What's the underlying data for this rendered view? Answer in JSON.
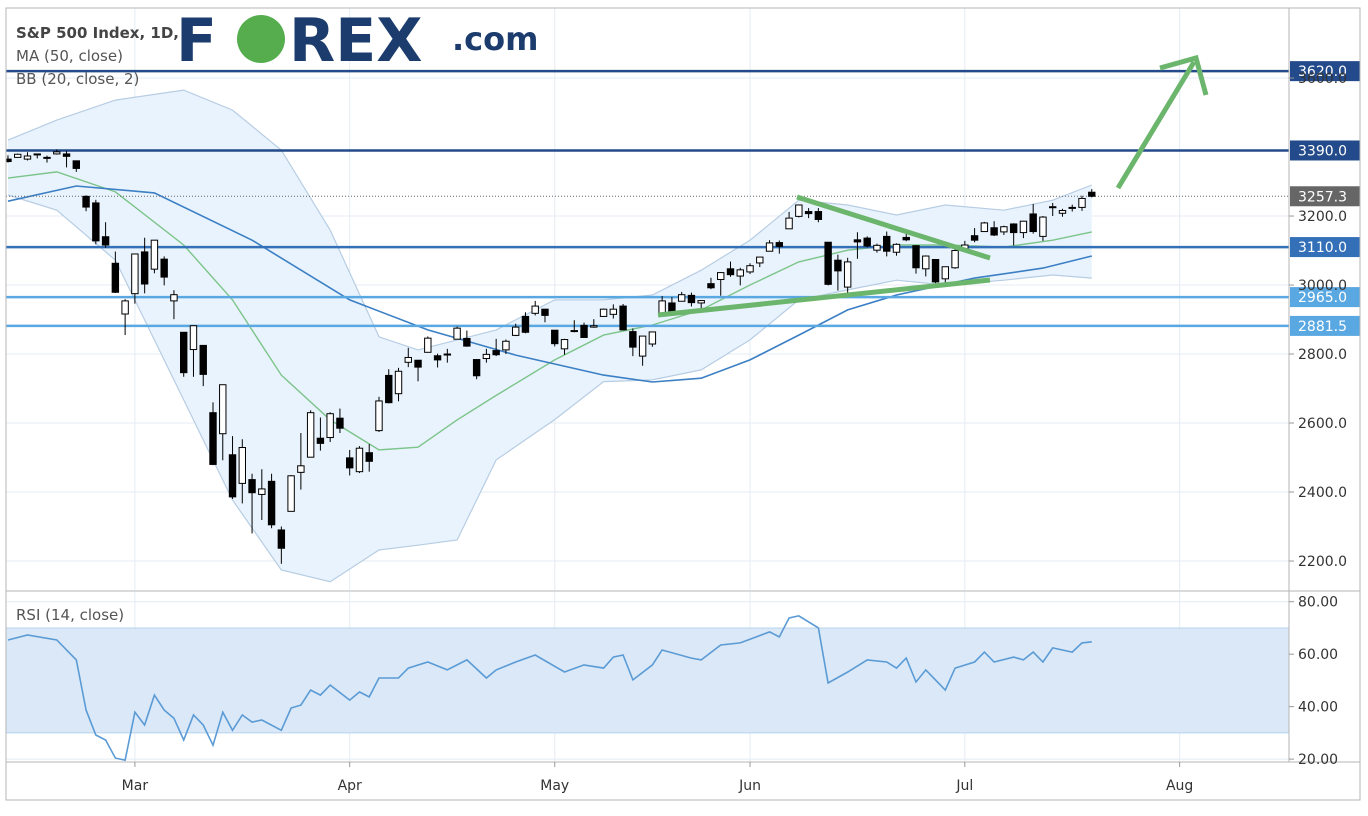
{
  "chart_data": {
    "type": "candlestick",
    "title": "S&P 500 Index, 1D,",
    "logo": {
      "first": "F",
      "second": "O",
      "rest": "REX",
      "suffix": ".com"
    },
    "xlim": [
      -0.2,
      131.2
    ],
    "xticks": [
      {
        "value": 13,
        "label": "Mar"
      },
      {
        "value": 35,
        "label": "Apr"
      },
      {
        "value": 56,
        "label": "May"
      },
      {
        "value": 76,
        "label": "Jun"
      },
      {
        "value": 98,
        "label": "Jul"
      },
      {
        "value": 120,
        "label": "Aug"
      }
    ],
    "ylim": [
      2116,
      3803
    ],
    "yticks": [
      {
        "value": 2200,
        "label": "2200.0"
      },
      {
        "value": 2400,
        "label": "2400.0"
      },
      {
        "value": 2600,
        "label": "2600.0"
      },
      {
        "value": 2800,
        "label": "2800.0"
      },
      {
        "value": 3000,
        "label": "3000.0"
      },
      {
        "value": 3200,
        "label": "3200.0"
      },
      {
        "value": 3600,
        "label": "3600.0"
      }
    ],
    "grid": true,
    "up_color": "#ffffff",
    "down_color": "#000000",
    "x": [
      0,
      1,
      2,
      3,
      4,
      5,
      6,
      7,
      8,
      9,
      10,
      11,
      12,
      13,
      14,
      15,
      16,
      17,
      18,
      19,
      20,
      21,
      22,
      23,
      24,
      25,
      26,
      27,
      28,
      29,
      30,
      31,
      32,
      33,
      34,
      35,
      36,
      37,
      38,
      39,
      40,
      41,
      42,
      43,
      44,
      45,
      46,
      47,
      48,
      49,
      50,
      51,
      52,
      53,
      54,
      55,
      56,
      57,
      58,
      59,
      60,
      61,
      62,
      63,
      64,
      65,
      66,
      67,
      68,
      69,
      70,
      71,
      72,
      73,
      74,
      75,
      76,
      77,
      78,
      79,
      80,
      81,
      82,
      83,
      84,
      85,
      86,
      87,
      88,
      89,
      90,
      91,
      92,
      93,
      94,
      95,
      96,
      97,
      98,
      99,
      100,
      101,
      102,
      103,
      104,
      105,
      106,
      107,
      108,
      109,
      110,
      111
    ],
    "open": [
      3365,
      3370,
      3365,
      3378,
      3369,
      3380,
      3380,
      3360,
      3257,
      3238,
      3140,
      3063,
      2916,
      2975,
      3096,
      3046,
      3075,
      2954,
      2863,
      2813,
      2825,
      2630,
      2569,
      2508,
      2425,
      2436,
      2393,
      2431,
      2290,
      2344,
      2457,
      2501,
      2556,
      2558,
      2614,
      2499,
      2459,
      2514,
      2578,
      2738,
      2685,
      2776,
      2782,
      2805,
      2795,
      2799,
      2843,
      2845,
      2784,
      2787,
      2810,
      2812,
      2854,
      2909,
      2918,
      2930,
      2869,
      2815,
      2868,
      2883,
      2878,
      2909,
      2915,
      2939,
      2865,
      2794,
      2829,
      2913,
      2948,
      2953,
      2970,
      2948,
      3004,
      3016,
      3047,
      3026,
      3038,
      3064,
      3098,
      3123,
      3163,
      3199,
      3213,
      3213,
      3124,
      3072,
      2994,
      3131,
      3136,
      3101,
      3141,
      3095,
      3138,
      3114,
      3047,
      3074,
      3018,
      3050,
      3105,
      3143,
      3155,
      3166,
      3154,
      3177,
      3152,
      3206,
      3141,
      3225,
      3208,
      3224,
      3225,
      3269
    ],
    "high": [
      3376,
      3381,
      3385,
      3380,
      3375,
      3393,
      3389,
      3360,
      3260,
      3247,
      3182,
      3097,
      2959,
      3091,
      3137,
      3130,
      3083,
      2985,
      2863,
      2883,
      2825,
      2660,
      2711,
      2562,
      2553,
      2453,
      2466,
      2453,
      2300,
      2449,
      2571,
      2637,
      2616,
      2631,
      2642,
      2522,
      2533,
      2539,
      2676,
      2756,
      2760,
      2818,
      2782,
      2851,
      2801,
      2815,
      2880,
      2868,
      2785,
      2815,
      2844,
      2842,
      2888,
      2921,
      2954,
      2930,
      2869,
      2844,
      2898,
      2891,
      2901,
      2932,
      2944,
      2945,
      2874,
      2852,
      2865,
      2968,
      2965,
      2980,
      2978,
      2956,
      3021,
      3037,
      3068,
      3050,
      3063,
      3081,
      3130,
      3129,
      3212,
      3233,
      3223,
      3223,
      3124,
      3088,
      3079,
      3153,
      3141,
      3120,
      3155,
      3121,
      3154,
      3115,
      3086,
      3074,
      3053,
      3111,
      3128,
      3165,
      3183,
      3185,
      3172,
      3179,
      3186,
      3235,
      3200,
      3238,
      3221,
      3233,
      3259,
      3278
    ],
    "low": [
      3355,
      3369,
      3361,
      3367,
      3355,
      3378,
      3341,
      3328,
      3214,
      3118,
      3108,
      2977,
      2855,
      2946,
      2976,
      3034,
      2999,
      2901,
      2734,
      2734,
      2707,
      2478,
      2492,
      2380,
      2367,
      2280,
      2319,
      2295,
      2192,
      2344,
      2407,
      2500,
      2520,
      2545,
      2571,
      2448,
      2455,
      2459,
      2574,
      2657,
      2663,
      2762,
      2721,
      2805,
      2761,
      2775,
      2843,
      2821,
      2727,
      2775,
      2794,
      2800,
      2852,
      2860,
      2912,
      2892,
      2822,
      2798,
      2863,
      2847,
      2876,
      2908,
      2903,
      2869,
      2794,
      2766,
      2821,
      2913,
      2921,
      2953,
      2938,
      2933,
      2988,
      2969,
      3024,
      2999,
      3032,
      3052,
      3098,
      3091,
      3163,
      3196,
      3194,
      3182,
      2999,
      2984,
      2966,
      3076,
      3109,
      3094,
      3083,
      3085,
      3127,
      3033,
      3025,
      3005,
      2999,
      3047,
      3101,
      3124,
      3155,
      3142,
      3145,
      3115,
      3136,
      3149,
      3128,
      3200,
      3198,
      3213,
      3215,
      3254
    ],
    "close": [
      3358,
      3379,
      3374,
      3380,
      3370,
      3386,
      3373,
      3338,
      3226,
      3128,
      3116,
      2979,
      2954,
      3090,
      3003,
      3130,
      3023,
      2972,
      2746,
      2882,
      2741,
      2480,
      2711,
      2386,
      2529,
      2398,
      2409,
      2305,
      2237,
      2447,
      2476,
      2630,
      2541,
      2627,
      2585,
      2470,
      2527,
      2489,
      2664,
      2659,
      2750,
      2790,
      2762,
      2846,
      2783,
      2800,
      2875,
      2823,
      2737,
      2799,
      2798,
      2837,
      2878,
      2863,
      2939,
      2912,
      2830,
      2842,
      2868,
      2848,
      2882,
      2930,
      2930,
      2870,
      2820,
      2852,
      2864,
      2954,
      2922,
      2972,
      2949,
      2955,
      2992,
      3036,
      3030,
      3044,
      3056,
      3081,
      3122,
      3112,
      3194,
      3232,
      3207,
      3190,
      3002,
      3041,
      3067,
      3125,
      3113,
      3115,
      3098,
      3118,
      3131,
      3050,
      3084,
      3009,
      3053,
      3100,
      3116,
      3130,
      3180,
      3145,
      3169,
      3152,
      3185,
      3155,
      3197,
      3227,
      3216,
      3225,
      3251,
      3257.3
    ],
    "ma": {
      "name": "MA (50, close)",
      "color": "#3b7fc4",
      "x": [
        0,
        7,
        15,
        25,
        35,
        43,
        52,
        61,
        66,
        71,
        76,
        81,
        86,
        91,
        99,
        106,
        111
      ],
      "values": [
        3243,
        3287,
        3267,
        3130,
        2957,
        2870,
        2797,
        2739,
        2719,
        2730,
        2783,
        2855,
        2928,
        2971,
        3020,
        3049,
        3084
      ]
    },
    "bb": {
      "name": "BB (20, close, 2)",
      "basis_color": "#7cc48a",
      "band_color": "#b7cde3",
      "fill": "#e9f3fd",
      "x": [
        0,
        5,
        11,
        18,
        23,
        28,
        33,
        38,
        42,
        46,
        50,
        56,
        61,
        66,
        71,
        76,
        81,
        86,
        91,
        96,
        102,
        107,
        111
      ],
      "upper": [
        3420,
        3478,
        3536,
        3565,
        3507,
        3391,
        3159,
        2850,
        2812,
        2841,
        2870,
        2957,
        2957,
        2971,
        3043,
        3130,
        3246,
        3232,
        3203,
        3232,
        3217,
        3246,
        3290
      ],
      "basis": [
        3310,
        3328,
        3270,
        3116,
        2957,
        2739,
        2609,
        2522,
        2530,
        2609,
        2680,
        2783,
        2855,
        2884,
        2928,
        3000,
        3067,
        3101,
        3116,
        3116,
        3110,
        3130,
        3154
      ],
      "lower": [
        3261,
        3217,
        3072,
        2667,
        2377,
        2174,
        2140,
        2232,
        2246,
        2261,
        2493,
        2610,
        2720,
        2725,
        2754,
        2841,
        2957,
        2986,
        3014,
        3000,
        3014,
        3029,
        3020
      ]
    },
    "levels": [
      {
        "value": 3620,
        "label": "3620.0",
        "color": "#234a8a"
      },
      {
        "value": 3390,
        "label": "3390.0",
        "color": "#234a8a"
      },
      {
        "value": 3110,
        "label": "3110.0",
        "color": "#3370b8"
      },
      {
        "value": 2965,
        "label": "2965.0",
        "color": "#5aa8e2"
      },
      {
        "value": 2881.5,
        "label": "2881.5",
        "color": "#5aa8e2"
      }
    ],
    "last_price": {
      "value": 3257.3,
      "color": "#666666"
    },
    "rsi": {
      "name": "RSI (14, close)",
      "color": "#5b9bd5",
      "band_fill": "#dae8f7",
      "band": [
        30,
        70
      ],
      "ylim": [
        18.9,
        83.7
      ],
      "yticks": [
        {
          "value": 20,
          "label": "20.00"
        },
        {
          "value": 40,
          "label": "40.00"
        },
        {
          "value": 60,
          "label": "60.00"
        },
        {
          "value": 80,
          "label": "80.00"
        }
      ],
      "x": [
        0,
        2,
        5,
        7,
        8,
        9,
        10,
        11,
        12,
        13,
        14,
        15,
        16,
        17,
        18,
        19,
        20,
        21,
        22,
        23,
        24,
        25,
        26,
        28,
        29,
        30,
        31,
        32,
        33,
        35,
        36,
        37,
        38,
        40,
        41,
        43,
        45,
        47,
        49,
        50,
        52,
        54,
        57,
        59,
        61,
        62,
        63,
        64,
        66,
        67,
        70,
        71,
        73,
        75,
        78,
        79,
        80,
        81,
        83,
        84,
        86,
        88,
        90,
        91,
        92,
        93,
        94,
        96,
        97,
        99,
        100,
        101,
        103,
        104,
        105,
        106,
        107,
        109,
        110,
        111
      ],
      "values": [
        65.4,
        67.3,
        65.4,
        57.8,
        38.7,
        29.2,
        27.3,
        20.4,
        19.6,
        37.9,
        33,
        44.4,
        38.7,
        35.6,
        27.3,
        36.8,
        33,
        25.3,
        37.9,
        31,
        36.8,
        34.1,
        34.9,
        31,
        39.5,
        40.6,
        46.3,
        44.4,
        48.2,
        42.5,
        45.6,
        43.7,
        50.9,
        50.9,
        54.7,
        57,
        54,
        57.8,
        50.9,
        54,
        57,
        59.7,
        53.2,
        55.9,
        54.7,
        58.9,
        59.7,
        50.2,
        55.9,
        61.6,
        58.5,
        57.8,
        63.5,
        64.3,
        68.5,
        66.6,
        73.8,
        74.6,
        70,
        49,
        53.2,
        57.8,
        57,
        54.7,
        58.5,
        49.4,
        54,
        46.3,
        54.7,
        57,
        60.8,
        57,
        58.9,
        57.8,
        60.8,
        57,
        62.4,
        60.8,
        64.3,
        64.7
      ]
    }
  }
}
